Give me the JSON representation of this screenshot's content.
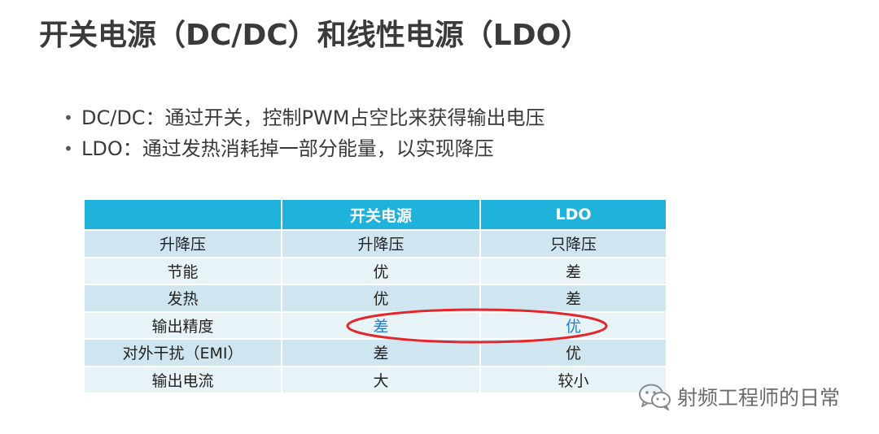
{
  "slide": {
    "title": "开关电源（DC/DC）和线性电源（LDO）",
    "bullets": [
      "DC/DC：通过开关，控制PWM占空比来获得输出电压",
      "LDO：通过发热消耗掉一部分能量，以实现降压"
    ],
    "bullet_marker": "•"
  },
  "table": {
    "headers": [
      "",
      "开关电源",
      "LDO"
    ],
    "rows": [
      [
        "升降压",
        "升降压",
        "只降压"
      ],
      [
        "节能",
        "优",
        "差"
      ],
      [
        "发热",
        "优",
        "差"
      ],
      [
        "输出精度",
        "差",
        "优"
      ],
      [
        "对外干扰（EMI）",
        "差",
        "优"
      ],
      [
        "输出电流",
        "大",
        "较小"
      ]
    ],
    "header_color": "#1fb3dc",
    "row_color_a": "#cfe6f1",
    "row_color_b": "#e8f3f8",
    "highlight_text_color": "#1e7fd0",
    "annotation_color": "#e3262b"
  },
  "watermark": {
    "text": "射频工程师的日常",
    "icon": "wechat-icon"
  }
}
